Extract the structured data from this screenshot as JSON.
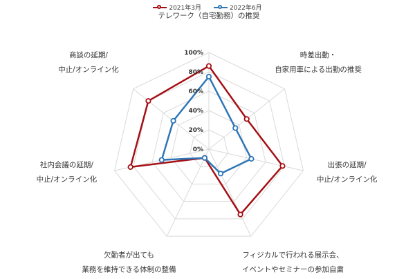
{
  "chart_data": {
    "type": "radar",
    "categories": [
      [
        "テレワーク（自宅勤務）の推奨"
      ],
      [
        "時差出勤・",
        "自家用車による出勤の推奨"
      ],
      [
        "出張の延期/",
        "中止/オンライン化"
      ],
      [
        "フィジカルで行われる展示会、",
        "イベントやセミナーの参加自粛"
      ],
      [
        "欠勤者が出ても",
        "業務を維持できる体制の整備"
      ],
      [
        "社内会議の延期/",
        "中止/オンライン化"
      ],
      [
        "商談の延期/",
        "中止/オンライン化"
      ]
    ],
    "series": [
      {
        "name": "2021年3月",
        "color": "#A50F15",
        "values": [
          86,
          50,
          78,
          75,
          10,
          83,
          80
        ]
      },
      {
        "name": "2022年6月",
        "color": "#2E75B6",
        "values": [
          75,
          35,
          45,
          28,
          10,
          50,
          47
        ]
      }
    ],
    "rlim": [
      0,
      100
    ],
    "ticks": [
      "0%",
      "20%",
      "40%",
      "60%",
      "80%",
      "100%"
    ],
    "legend": "top-center",
    "grid": true
  }
}
